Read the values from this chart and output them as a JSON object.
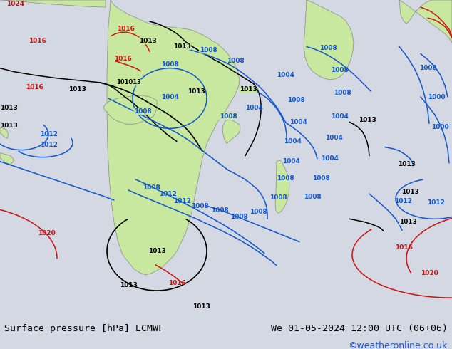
{
  "title_left": "Surface pressure [hPa] ECMWF",
  "title_right": "We 01-05-2024 12:00 UTC (06+06)",
  "copyright": "©weatheronline.co.uk",
  "bg_color": "#d4d8e2",
  "land_color": "#c8e8a0",
  "ocean_color": "#d4d8e2",
  "bottom_bar_color": "#e0e0e0",
  "title_fontsize": 9.5,
  "copyright_color": "#2255cc",
  "label_fontsize": 7
}
